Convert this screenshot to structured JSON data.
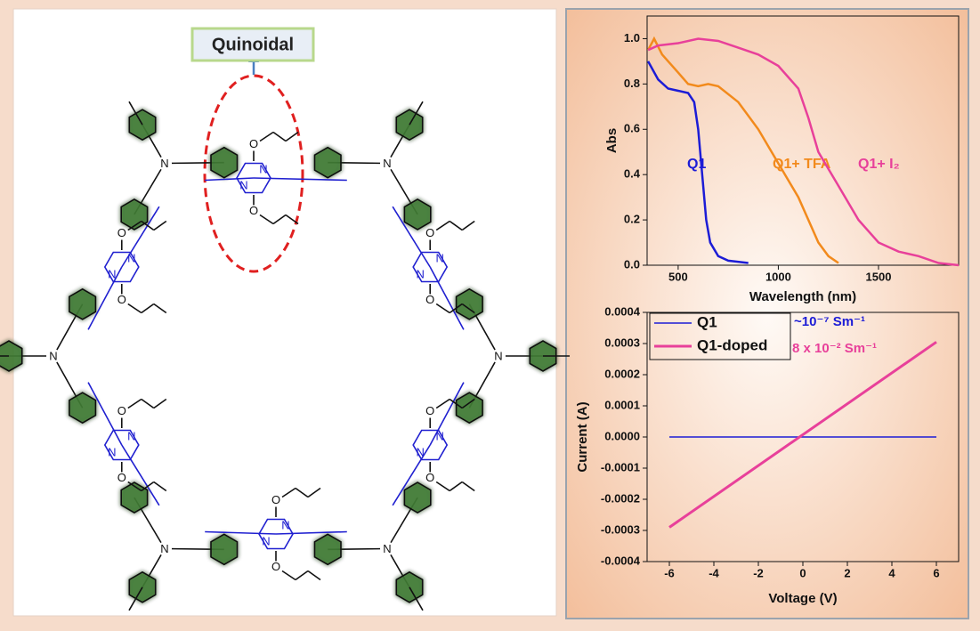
{
  "structure": {
    "label": "Quinoidal",
    "atoms": [
      "N",
      "O"
    ]
  },
  "chart_data": [
    {
      "type": "line",
      "xlabel": "Wavelength (nm)",
      "ylabel": "Abs",
      "xlim": [
        345,
        1900
      ],
      "ylim": [
        0,
        1.1
      ],
      "xticks": [
        500,
        1000,
        1500
      ],
      "yticks": [
        {
          "value": 0,
          "label": "0.0"
        },
        0.2,
        0.4,
        0.6,
        0.8,
        {
          "value": 1,
          "label": "1.0"
        }
      ],
      "series": [
        {
          "name": "Q1",
          "color": "#1c1cd6",
          "x": [
            350,
            400,
            450,
            500,
            550,
            580,
            600,
            620,
            640,
            660,
            700,
            750,
            850
          ],
          "values": [
            0.9,
            0.82,
            0.78,
            0.77,
            0.76,
            0.72,
            0.6,
            0.4,
            0.2,
            0.1,
            0.04,
            0.02,
            0.01
          ]
        },
        {
          "name": "Q1+ TFA",
          "color": "#f28a1c",
          "x": [
            350,
            380,
            420,
            500,
            550,
            600,
            650,
            700,
            800,
            900,
            1000,
            1100,
            1150,
            1200,
            1250,
            1300
          ],
          "values": [
            0.95,
            1.0,
            0.93,
            0.85,
            0.8,
            0.79,
            0.8,
            0.79,
            0.72,
            0.6,
            0.45,
            0.3,
            0.2,
            0.1,
            0.04,
            0.01
          ]
        },
        {
          "name": "Q1+ I₂",
          "color": "#e8409a",
          "x": [
            350,
            400,
            500,
            600,
            700,
            800,
            900,
            1000,
            1100,
            1150,
            1200,
            1300,
            1400,
            1500,
            1600,
            1700,
            1800,
            1900
          ],
          "values": [
            0.95,
            0.97,
            0.98,
            1.0,
            0.99,
            0.96,
            0.93,
            0.88,
            0.78,
            0.65,
            0.5,
            0.35,
            0.2,
            0.1,
            0.06,
            0.04,
            0.01,
            0.0
          ]
        }
      ]
    },
    {
      "type": "line",
      "xlabel": "Voltage (V)",
      "ylabel": "Current (A)",
      "xlim": [
        -7,
        7
      ],
      "ylim": [
        -0.0004,
        0.0004
      ],
      "xticks": [
        -6,
        -4,
        -2,
        0,
        2,
        4,
        6
      ],
      "yticks": [
        -0.0004,
        -0.0003,
        -0.0002,
        -0.0001,
        {
          "value": 0,
          "label": "0.0000"
        },
        0.0001,
        0.0002,
        0.0003,
        0.0004
      ],
      "legend": "upper left",
      "series": [
        {
          "name": "Q1",
          "color": "#1c1cd6",
          "x": [
            -6,
            6
          ],
          "values": [
            0,
            0
          ]
        },
        {
          "name": "Q1-doped",
          "color": "#e8409a",
          "x": [
            -6,
            6
          ],
          "values": [
            -0.00029,
            0.000305
          ]
        }
      ],
      "annotations": [
        {
          "text": "~10⁻⁷ Sm⁻¹",
          "color": "#1c1cd6"
        },
        {
          "text": "8 x 10⁻² Sm⁻¹",
          "color": "#e8409a"
        }
      ]
    }
  ]
}
